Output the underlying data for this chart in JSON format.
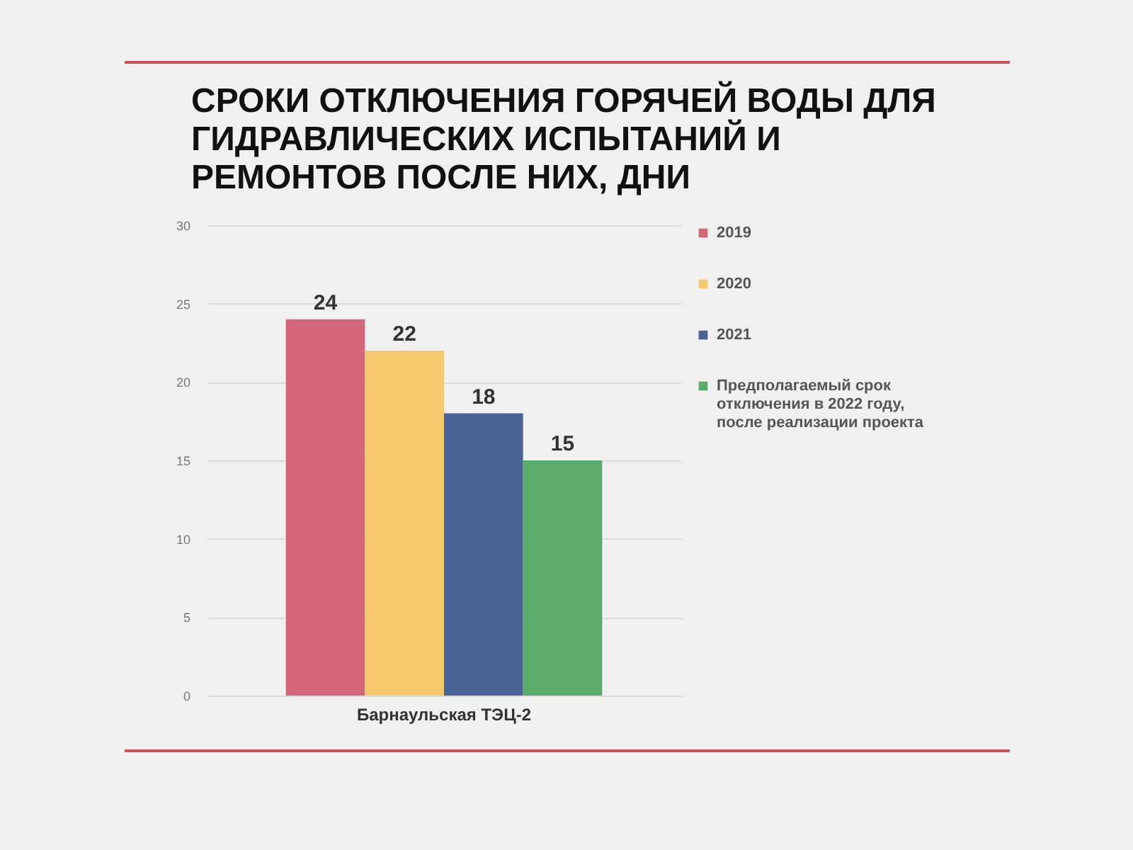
{
  "chart_data": {
    "type": "bar",
    "title": "СРОКИ ОТКЛЮЧЕНИЯ ГОРЯЧЕЙ ВОДЫ ДЛЯ ГИДРАВЛИЧЕСКИХ ИСПЫТАНИЙ И РЕМОНТОВ ПОСЛЕ НИХ, ДНИ",
    "categories": [
      "Барнаульская ТЭЦ-2"
    ],
    "series": [
      {
        "name": "2019",
        "color": "#d4677a",
        "values": [
          24
        ]
      },
      {
        "name": "2020",
        "color": "#f7c96e",
        "values": [
          22
        ]
      },
      {
        "name": "2021",
        "color": "#4a6294",
        "values": [
          18
        ]
      },
      {
        "name": "Предполагаемый срок отключения в 2022 году, после реализации проекта",
        "color": "#5bac6c",
        "values": [
          15
        ]
      }
    ],
    "ylim": [
      0,
      30
    ],
    "yticks": [
      0,
      5,
      10,
      15,
      20,
      25,
      30
    ],
    "grid": "y",
    "legend": "right",
    "data_labels": true
  }
}
